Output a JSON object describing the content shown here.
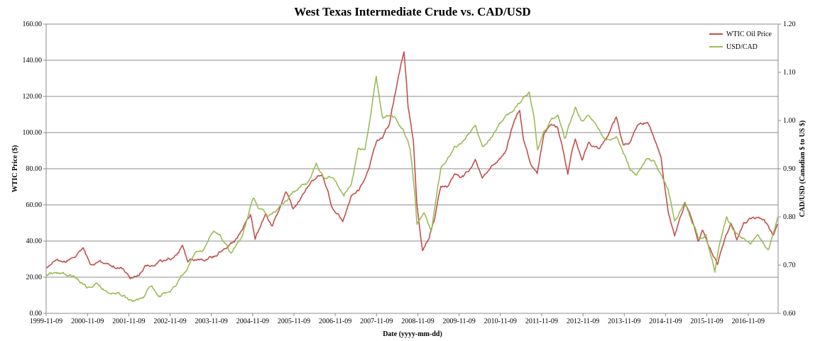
{
  "chart_data": {
    "type": "line",
    "title": "West Texas Intermediate Crude vs.  CAD/USD",
    "xlabel": "Date (yyyy-mm-dd)",
    "ylabel_left": "WTIC Price ($)",
    "ylabel_right": "CAD/USD (Canadian $ to US $)",
    "x_range": [
      "1999-11-09",
      "2017-08-01"
    ],
    "x_ticks": [
      "1999-11-09",
      "2000-11-09",
      "2001-11-09",
      "2002-11-09",
      "2003-11-09",
      "2004-11-09",
      "2005-11-09",
      "2006-11-09",
      "2007-11-09",
      "2008-11-09",
      "2009-11-09",
      "2010-11-09",
      "2011-11-09",
      "2012-11-09",
      "2013-11-09",
      "2014-11-09",
      "2015-11-09",
      "2016-11-09"
    ],
    "ylim_left": [
      0,
      160
    ],
    "yticks_left": [
      "0.00",
      "20.00",
      "40.00",
      "60.00",
      "80.00",
      "100.00",
      "120.00",
      "140.00",
      "160.00"
    ],
    "ylim_right": [
      0.6,
      1.2
    ],
    "yticks_right": [
      "0.60",
      "0.70",
      "0.80",
      "0.90",
      "1.00",
      "1.10",
      "1.20"
    ],
    "grid": true,
    "legend_position": "top-right",
    "series": [
      {
        "name": "WTIC Oil Price",
        "axis": "left",
        "color": "#c0504d",
        "points": [
          [
            "1999-11-09",
            25
          ],
          [
            "2000-02-01",
            29
          ],
          [
            "2000-05-01",
            28
          ],
          [
            "2000-08-01",
            32
          ],
          [
            "2000-10-01",
            35
          ],
          [
            "2000-12-01",
            27
          ],
          [
            "2001-03-01",
            28
          ],
          [
            "2001-06-01",
            27
          ],
          [
            "2001-09-01",
            25
          ],
          [
            "2001-11-20",
            19
          ],
          [
            "2002-02-01",
            21
          ],
          [
            "2002-04-01",
            26
          ],
          [
            "2002-07-01",
            27
          ],
          [
            "2002-10-01",
            29
          ],
          [
            "2003-01-01",
            32
          ],
          [
            "2003-03-01",
            37
          ],
          [
            "2003-04-15",
            28
          ],
          [
            "2003-07-01",
            30
          ],
          [
            "2003-10-01",
            29
          ],
          [
            "2004-01-01",
            33
          ],
          [
            "2004-03-01",
            37
          ],
          [
            "2004-06-01",
            40
          ],
          [
            "2004-08-01",
            46
          ],
          [
            "2004-10-20",
            55
          ],
          [
            "2004-12-01",
            42
          ],
          [
            "2005-03-01",
            54
          ],
          [
            "2005-05-01",
            48
          ],
          [
            "2005-08-30",
            68
          ],
          [
            "2005-11-01",
            58
          ],
          [
            "2006-01-01",
            63
          ],
          [
            "2006-04-20",
            74
          ],
          [
            "2006-07-15",
            77
          ],
          [
            "2006-09-01",
            68
          ],
          [
            "2006-10-15",
            58
          ],
          [
            "2007-01-15",
            52
          ],
          [
            "2007-04-01",
            65
          ],
          [
            "2007-06-01",
            68
          ],
          [
            "2007-08-01",
            75
          ],
          [
            "2007-09-01",
            80
          ],
          [
            "2007-11-15",
            96
          ],
          [
            "2008-01-01",
            97
          ],
          [
            "2008-03-01",
            105
          ],
          [
            "2008-05-01",
            125
          ],
          [
            "2008-07-10",
            145
          ],
          [
            "2008-08-15",
            115
          ],
          [
            "2008-10-01",
            95
          ],
          [
            "2008-11-01",
            60
          ],
          [
            "2008-12-20",
            34
          ],
          [
            "2009-02-01",
            40
          ],
          [
            "2009-04-01",
            50
          ],
          [
            "2009-06-01",
            70
          ],
          [
            "2009-08-01",
            70
          ],
          [
            "2009-10-01",
            78
          ],
          [
            "2009-12-01",
            75
          ],
          [
            "2010-02-01",
            78
          ],
          [
            "2010-04-01",
            86
          ],
          [
            "2010-06-01",
            74
          ],
          [
            "2010-08-01",
            79
          ],
          [
            "2010-11-01",
            85
          ],
          [
            "2011-01-01",
            90
          ],
          [
            "2011-03-01",
            105
          ],
          [
            "2011-04-29",
            113
          ],
          [
            "2011-06-01",
            97
          ],
          [
            "2011-08-01",
            84
          ],
          [
            "2011-10-01",
            78
          ],
          [
            "2011-12-01",
            100
          ],
          [
            "2012-02-01",
            105
          ],
          [
            "2012-04-01",
            102
          ],
          [
            "2012-06-28",
            78
          ],
          [
            "2012-09-01",
            97
          ],
          [
            "2012-11-01",
            86
          ],
          [
            "2013-01-01",
            95
          ],
          [
            "2013-04-01",
            90
          ],
          [
            "2013-06-01",
            96
          ],
          [
            "2013-09-01",
            108
          ],
          [
            "2013-11-01",
            93
          ],
          [
            "2014-01-01",
            95
          ],
          [
            "2014-03-01",
            103
          ],
          [
            "2014-06-01",
            106
          ],
          [
            "2014-08-01",
            97
          ],
          [
            "2014-10-01",
            86
          ],
          [
            "2014-12-01",
            56
          ],
          [
            "2015-01-28",
            44
          ],
          [
            "2015-03-01",
            50
          ],
          [
            "2015-05-01",
            60
          ],
          [
            "2015-07-01",
            52
          ],
          [
            "2015-08-24",
            39
          ],
          [
            "2015-10-01",
            46
          ],
          [
            "2015-12-01",
            37
          ],
          [
            "2016-02-11",
            27
          ],
          [
            "2016-04-01",
            38
          ],
          [
            "2016-06-09",
            51
          ],
          [
            "2016-08-01",
            41
          ],
          [
            "2016-10-01",
            50
          ],
          [
            "2016-12-01",
            52
          ],
          [
            "2017-02-01",
            53
          ],
          [
            "2017-04-01",
            51
          ],
          [
            "2017-06-21",
            43
          ],
          [
            "2017-08-01",
            49
          ]
        ]
      },
      {
        "name": "USD/CAD",
        "axis": "right",
        "color": "#9bbb59",
        "points": [
          [
            "1999-11-09",
            0.68
          ],
          [
            "2000-03-01",
            0.685
          ],
          [
            "2000-08-01",
            0.675
          ],
          [
            "2000-11-01",
            0.655
          ],
          [
            "2001-02-01",
            0.66
          ],
          [
            "2001-05-01",
            0.645
          ],
          [
            "2001-08-01",
            0.645
          ],
          [
            "2001-11-01",
            0.63
          ],
          [
            "2002-01-20",
            0.625
          ],
          [
            "2002-04-01",
            0.635
          ],
          [
            "2002-06-01",
            0.66
          ],
          [
            "2002-08-01",
            0.635
          ],
          [
            "2002-10-01",
            0.64
          ],
          [
            "2003-01-01",
            0.655
          ],
          [
            "2003-04-01",
            0.69
          ],
          [
            "2003-07-01",
            0.73
          ],
          [
            "2003-09-01",
            0.73
          ],
          [
            "2003-12-01",
            0.77
          ],
          [
            "2004-02-01",
            0.76
          ],
          [
            "2004-05-01",
            0.725
          ],
          [
            "2004-08-01",
            0.76
          ],
          [
            "2004-11-15",
            0.84
          ],
          [
            "2005-01-01",
            0.82
          ],
          [
            "2005-04-01",
            0.8
          ],
          [
            "2005-07-01",
            0.82
          ],
          [
            "2005-11-01",
            0.85
          ],
          [
            "2006-01-01",
            0.86
          ],
          [
            "2006-03-01",
            0.87
          ],
          [
            "2006-05-25",
            0.91
          ],
          [
            "2006-08-01",
            0.88
          ],
          [
            "2006-10-01",
            0.885
          ],
          [
            "2006-12-01",
            0.865
          ],
          [
            "2007-01-25",
            0.845
          ],
          [
            "2007-04-01",
            0.87
          ],
          [
            "2007-06-01",
            0.94
          ],
          [
            "2007-08-01",
            0.94
          ],
          [
            "2007-11-07",
            1.09
          ],
          [
            "2008-01-01",
            1.0
          ],
          [
            "2008-03-01",
            1.01
          ],
          [
            "2008-05-01",
            1.0
          ],
          [
            "2008-07-01",
            0.98
          ],
          [
            "2008-09-01",
            0.94
          ],
          [
            "2008-10-15",
            0.84
          ],
          [
            "2008-11-01",
            0.78
          ],
          [
            "2009-01-01",
            0.81
          ],
          [
            "2009-03-09",
            0.77
          ],
          [
            "2009-05-01",
            0.86
          ],
          [
            "2009-06-01",
            0.9
          ],
          [
            "2009-08-01",
            0.92
          ],
          [
            "2009-10-01",
            0.945
          ],
          [
            "2010-01-01",
            0.96
          ],
          [
            "2010-04-01",
            0.99
          ],
          [
            "2010-06-01",
            0.945
          ],
          [
            "2010-08-01",
            0.96
          ],
          [
            "2010-11-01",
            0.99
          ],
          [
            "2011-01-01",
            1.01
          ],
          [
            "2011-03-01",
            1.02
          ],
          [
            "2011-07-22",
            1.06
          ],
          [
            "2011-09-01",
            1.01
          ],
          [
            "2011-10-04",
            0.94
          ],
          [
            "2011-12-01",
            0.98
          ],
          [
            "2012-02-01",
            1.0
          ],
          [
            "2012-04-01",
            1.01
          ],
          [
            "2012-06-01",
            0.96
          ],
          [
            "2012-09-01",
            1.025
          ],
          [
            "2012-11-01",
            1.0
          ],
          [
            "2013-01-01",
            1.01
          ],
          [
            "2013-04-01",
            0.98
          ],
          [
            "2013-06-01",
            0.96
          ],
          [
            "2013-09-01",
            0.97
          ],
          [
            "2014-01-01",
            0.9
          ],
          [
            "2014-03-01",
            0.89
          ],
          [
            "2014-06-01",
            0.92
          ],
          [
            "2014-08-01",
            0.915
          ],
          [
            "2014-10-01",
            0.885
          ],
          [
            "2014-12-01",
            0.86
          ],
          [
            "2015-01-28",
            0.79
          ],
          [
            "2015-03-01",
            0.8
          ],
          [
            "2015-05-01",
            0.83
          ],
          [
            "2015-07-01",
            0.79
          ],
          [
            "2015-09-01",
            0.755
          ],
          [
            "2015-11-01",
            0.76
          ],
          [
            "2016-01-19",
            0.685
          ],
          [
            "2016-03-01",
            0.74
          ],
          [
            "2016-05-02",
            0.8
          ],
          [
            "2016-07-01",
            0.77
          ],
          [
            "2016-09-01",
            0.76
          ],
          [
            "2016-12-01",
            0.745
          ],
          [
            "2017-02-01",
            0.765
          ],
          [
            "2017-05-05",
            0.73
          ],
          [
            "2017-07-01",
            0.77
          ],
          [
            "2017-08-01",
            0.8
          ]
        ]
      }
    ]
  }
}
